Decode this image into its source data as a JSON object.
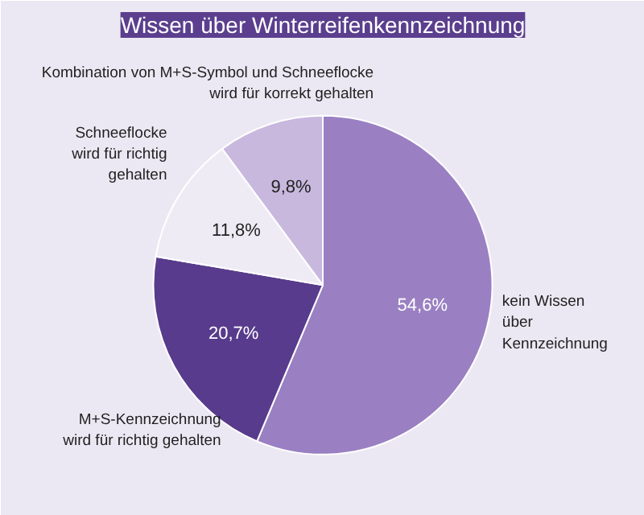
{
  "chart_data": {
    "type": "pie",
    "title": "Wissen über Winterreifenkennzeichnung",
    "categories": [
      "kein Wissen\nüber\nKennzeichnung",
      "M+S-Kennzeichnung\nwird für richtig gehalten",
      "Schneeflocke\nwird für richtig\ngehalten",
      "Kombination von M+S-Symbol und Schneeflocke\nwird für korrekt gehalten"
    ],
    "values": [
      54.6,
      20.7,
      11.8,
      9.8
    ],
    "colors": [
      "#9a80c2",
      "#583b8c",
      "#efebf5",
      "#c8b8de"
    ],
    "value_labels": [
      "54,6%",
      "20,7%",
      "11,8%",
      "9,8%"
    ]
  }
}
